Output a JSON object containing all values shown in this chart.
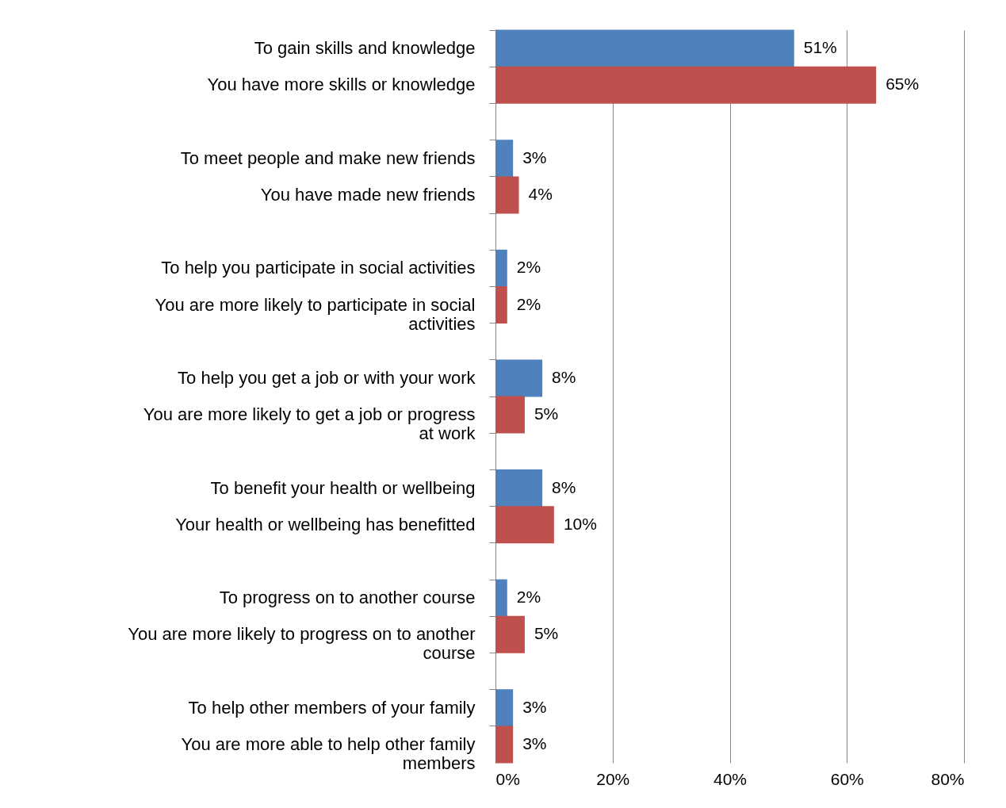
{
  "chart_data": {
    "type": "bar",
    "orientation": "horizontal",
    "categories": [
      "To gain skills and knowledge",
      "You have more skills or knowledge",
      "To meet people and make new friends",
      "You have made new friends",
      "To help you participate in social activities",
      "You are more likely to participate in social activities",
      "To help you get a job or with your work",
      "You are more likely to get a job or progress at work",
      "To benefit your health or wellbeing",
      "Your health or wellbeing has benefitted",
      "To progress on to another course",
      "You are more likely to progress on to another course",
      "To help other members of your family",
      "You are more able to help other family members"
    ],
    "series": [
      {
        "color": "#4f81bd",
        "values": [
          51,
          null,
          3,
          null,
          2,
          null,
          8,
          null,
          8,
          null,
          2,
          null,
          3,
          null
        ],
        "value_labels": [
          "51%",
          null,
          "3%",
          null,
          "2%",
          null,
          "8%",
          null,
          "8%",
          null,
          "2%",
          null,
          "3%",
          null
        ]
      },
      {
        "color": "#c0504d",
        "values": [
          null,
          65,
          null,
          4,
          null,
          2,
          null,
          5,
          null,
          10,
          null,
          5,
          null,
          3
        ],
        "value_labels": [
          null,
          "65%",
          null,
          "4%",
          null,
          "2%",
          null,
          "5%",
          null,
          "10%",
          null,
          "5%",
          null,
          "3%"
        ]
      }
    ],
    "xlim": [
      0,
      80
    ],
    "xticks": [
      {
        "value": 0,
        "label": "0%"
      },
      {
        "value": 20,
        "label": "20%"
      },
      {
        "value": 40,
        "label": "40%"
      },
      {
        "value": 60,
        "label": "60%"
      },
      {
        "value": 80,
        "label": "80%"
      }
    ],
    "grid": "x",
    "legend": false
  }
}
